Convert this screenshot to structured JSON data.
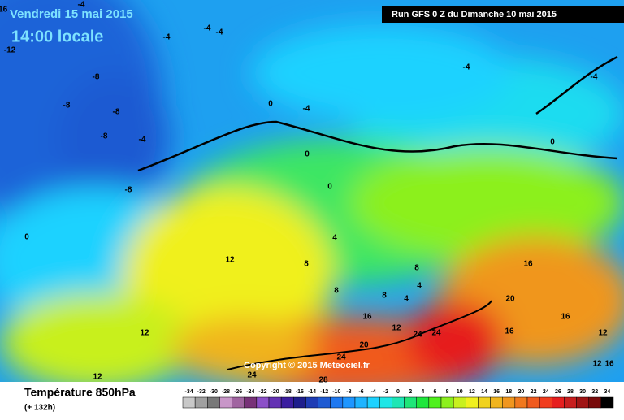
{
  "header": {
    "date": "Vendredi 15 mai 2015",
    "time": "14:00 locale",
    "run": "Run GFS 0 Z du Dimanche 10 mai 2015"
  },
  "copyright": "Copyright © 2015 Meteociel.fr",
  "footer": {
    "title": "Température 850hPa",
    "lead": "(+ 132h)"
  },
  "scale": {
    "labels": [
      -34,
      -32,
      -30,
      -28,
      -26,
      -24,
      -22,
      -20,
      -18,
      -16,
      -14,
      -12,
      -10,
      -8,
      -6,
      -4,
      -2,
      0,
      2,
      4,
      6,
      8,
      10,
      12,
      14,
      16,
      18,
      20,
      22,
      24,
      26,
      28,
      30,
      32,
      34
    ],
    "colors": [
      "#c8c8c8",
      "#a0a0a0",
      "#787878",
      "#c896c8",
      "#a064a0",
      "#783278",
      "#8c50c8",
      "#6432b4",
      "#3c1ea0",
      "#1e1e8c",
      "#1e3cb4",
      "#1e5ad2",
      "#1e78f0",
      "#1e96ff",
      "#1eb4ff",
      "#1ed2ff",
      "#1ee6e6",
      "#1ee6b4",
      "#1ee678",
      "#1ee63c",
      "#50f01e",
      "#8cf01e",
      "#c8f01e",
      "#f0f01e",
      "#f0d21e",
      "#f0b41e",
      "#f0961e",
      "#f0781e",
      "#f05a1e",
      "#f03c1e",
      "#e61e1e",
      "#c81e1e",
      "#a01414",
      "#780a0a",
      "#000000"
    ]
  },
  "contour_labels": [
    -16,
    -4,
    -12,
    -8,
    -8,
    -8,
    -8,
    -8,
    -4,
    -4,
    -4,
    -4,
    -4,
    -4,
    -4,
    0,
    0,
    0,
    0,
    0,
    4,
    8,
    12,
    12,
    12,
    8,
    4,
    16,
    20,
    16,
    16,
    12,
    12,
    24,
    24,
    20,
    24,
    24,
    28,
    16,
    12,
    16,
    8,
    4,
    8
  ]
}
